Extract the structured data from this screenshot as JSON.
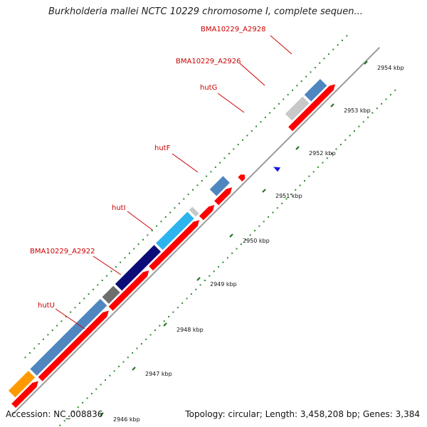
{
  "title": "Burkholderia mallei NCTC 10229 chromosome I, complete sequen...",
  "footer": {
    "accession": "Accession: NC_008836",
    "summary": "Topology: circular; Length: 3,458,208 bp; Genes: 3,384"
  },
  "colors": {
    "backbone": "#9a9a9a",
    "tick_dots": "#2a8a2a",
    "major_tick": "#1f6f1f",
    "label": "#cc0000",
    "cds_red": "#ff0000",
    "steelblue": "#4f86c0",
    "lightgray": "#c8c8c8",
    "skyblue": "#2db4ef",
    "navy": "#0c0c78",
    "darkgray": "#6e6e6e",
    "orange": "#ff9900",
    "blue_marker": "#1414e0"
  },
  "gene_labels": [
    {
      "text": "BMA10229_A2928"
    },
    {
      "text": "BMA10229_A2926"
    },
    {
      "text": "hutG"
    },
    {
      "text": "hutF"
    },
    {
      "text": "hutI"
    },
    {
      "text": "BMA10229_A2922"
    },
    {
      "text": "hutU"
    }
  ],
  "scale_ticks": [
    {
      "label": "2954 kbp"
    },
    {
      "label": "2953 kbp"
    },
    {
      "label": "2952 kbp"
    },
    {
      "label": "2951 kbp"
    },
    {
      "label": "2950 kbp"
    },
    {
      "label": "2949 kbp"
    },
    {
      "label": "2948 kbp"
    },
    {
      "label": "2947 kbp"
    },
    {
      "label": "2946 kbp"
    }
  ]
}
